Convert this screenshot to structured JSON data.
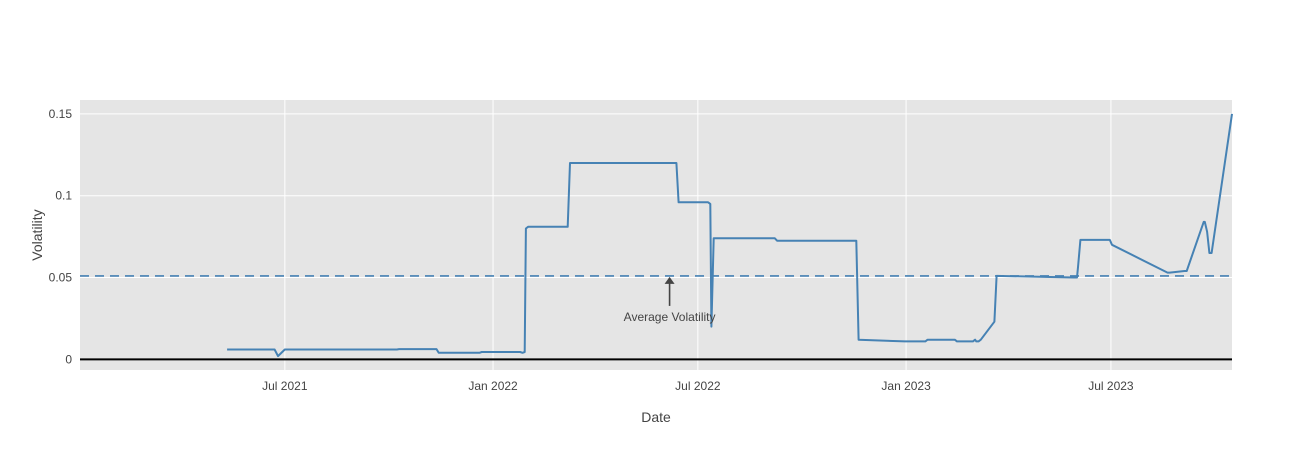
{
  "chart_data": {
    "type": "line",
    "xlabel": "Date",
    "ylabel": "Volatility",
    "xlim": [
      "2021-01-01",
      "2023-10-16"
    ],
    "ylim": [
      -0.0065,
      0.1585
    ],
    "x_ticks": [
      {
        "value": "2021-07-01",
        "label": "Jul 2021"
      },
      {
        "value": "2022-01-01",
        "label": "Jan 2022"
      },
      {
        "value": "2022-07-01",
        "label": "Jul 2022"
      },
      {
        "value": "2023-01-01",
        "label": "Jan 2023"
      },
      {
        "value": "2023-07-01",
        "label": "Jul 2023"
      }
    ],
    "y_ticks": [
      {
        "value": 0,
        "label": "0"
      },
      {
        "value": 0.05,
        "label": "0.05"
      },
      {
        "value": 0.1,
        "label": "0.1"
      },
      {
        "value": 0.15,
        "label": "0.15"
      }
    ],
    "grid": true,
    "zero_line": true,
    "background": "#e5e5e5",
    "grid_color": "#ffffff",
    "series": [
      {
        "color": "#4682b4",
        "line_style": "solid",
        "x": [
          "2021-05-11",
          "2021-06-22",
          "2021-06-25",
          "2021-07-01",
          "2021-10-08",
          "2021-10-10",
          "2021-11-12",
          "2021-11-14",
          "2021-12-20",
          "2021-12-22",
          "2022-01-25",
          "2022-01-27",
          "2022-01-29",
          "2022-01-30",
          "2022-02-01",
          "2022-03-08",
          "2022-03-10",
          "2022-06-12",
          "2022-06-14",
          "2022-07-10",
          "2022-07-12",
          "2022-07-13",
          "2022-07-15",
          "2022-09-07",
          "2022-09-09",
          "2022-11-18",
          "2022-11-20",
          "2022-12-31",
          "2023-01-01",
          "2023-01-18",
          "2023-01-20",
          "2023-02-13",
          "2023-02-15",
          "2023-03-01",
          "2023-03-03",
          "2023-03-04",
          "2023-03-06",
          "2023-03-08",
          "2023-03-20",
          "2023-03-22",
          "2023-05-29",
          "2023-06-01",
          "2023-06-02",
          "2023-06-04",
          "2023-06-30",
          "2023-07-02",
          "2023-08-20",
          "2023-08-22",
          "2023-09-04",
          "2023-09-06",
          "2023-09-21",
          "2023-09-22",
          "2023-09-24",
          "2023-09-26",
          "2023-09-28",
          "2023-10-16"
        ],
        "y": [
          0.006,
          0.006,
          0.002,
          0.006,
          0.006,
          0.0063,
          0.0063,
          0.004,
          0.004,
          0.0045,
          0.0045,
          0.004,
          0.0045,
          0.08,
          0.081,
          0.081,
          0.12,
          0.12,
          0.096,
          0.096,
          0.095,
          0.02,
          0.074,
          0.074,
          0.0725,
          0.0725,
          0.012,
          0.011,
          0.011,
          0.011,
          0.012,
          0.012,
          0.011,
          0.011,
          0.012,
          0.011,
          0.011,
          0.012,
          0.023,
          0.051,
          0.05,
          0.05,
          0.057,
          0.073,
          0.073,
          0.07,
          0.053,
          0.053,
          0.054,
          0.054,
          0.084,
          0.084,
          0.078,
          0.065,
          0.065,
          0.15
        ]
      },
      {
        "color": "#4682b4",
        "line_style": "dashed",
        "x": [
          "2021-01-01",
          "2023-10-16"
        ],
        "y": [
          0.051,
          0.051
        ]
      }
    ],
    "annotations": [
      {
        "text": "Average Volatility",
        "x": "2022-06-06",
        "y": 0.051,
        "arrow": true
      }
    ]
  }
}
